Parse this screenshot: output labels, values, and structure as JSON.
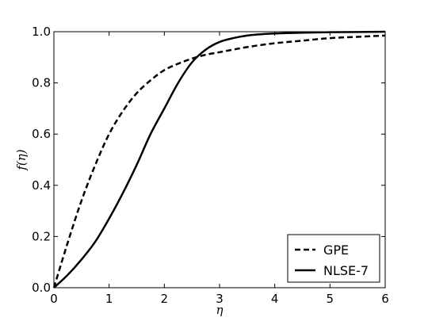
{
  "chart_data": {
    "type": "line",
    "xlabel": "η",
    "ylabel": "f(η)",
    "xlim": [
      0,
      6
    ],
    "ylim": [
      0,
      1.0
    ],
    "xticks": [
      "0",
      "1",
      "2",
      "3",
      "4",
      "5",
      "6"
    ],
    "yticks": [
      "0.0",
      "0.2",
      "0.4",
      "0.6",
      "0.8",
      "1.0"
    ],
    "grid": false,
    "legend_position": "bottom-right",
    "series": [
      {
        "name": "GPE",
        "style": "dashed",
        "color": "#000000",
        "x": [
          0,
          0.25,
          0.5,
          0.75,
          1.0,
          1.25,
          1.5,
          1.75,
          2.0,
          2.25,
          2.5,
          2.75,
          3.0,
          3.5,
          4.0,
          4.5,
          5.0,
          5.5,
          6.0
        ],
        "y": [
          0,
          0.176,
          0.34,
          0.48,
          0.6,
          0.69,
          0.76,
          0.81,
          0.85,
          0.875,
          0.895,
          0.91,
          0.92,
          0.94,
          0.955,
          0.965,
          0.975,
          0.98,
          0.985
        ]
      },
      {
        "name": "NLSE-7",
        "style": "solid",
        "color": "#000000",
        "x": [
          0,
          0.25,
          0.5,
          0.75,
          1.0,
          1.25,
          1.5,
          1.75,
          2.0,
          2.25,
          2.5,
          2.75,
          3.0,
          3.25,
          3.5,
          4.0,
          4.5,
          5.0,
          5.5,
          6.0
        ],
        "y": [
          0,
          0.05,
          0.11,
          0.18,
          0.27,
          0.37,
          0.48,
          0.6,
          0.7,
          0.8,
          0.88,
          0.93,
          0.96,
          0.975,
          0.985,
          0.993,
          0.996,
          0.998,
          0.999,
          1.0
        ]
      }
    ]
  }
}
